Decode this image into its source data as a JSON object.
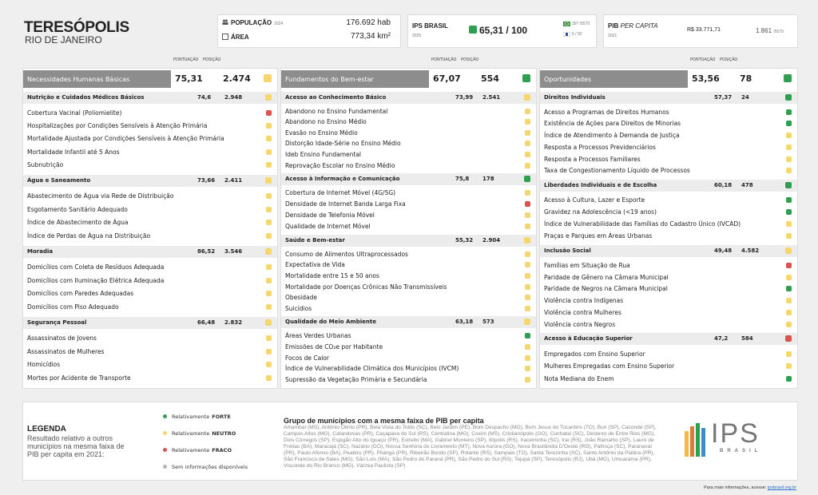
{
  "header": {
    "city": "TERESÓPOLIS",
    "state": "RIO DE JANEIRO"
  },
  "stats": {
    "population_label": "POPULAÇÃO",
    "population_year": "2024",
    "population": "176.692 hab",
    "area_label": "ÁREA",
    "area": "773,34 km²",
    "ips_label": "IPS BRASIL",
    "ips_year": "2025",
    "ips_color": "#2e9e4f",
    "ips_score": "65,31 / 100",
    "rank_national": "397",
    "rank_national_total": "/5570",
    "rank_state": "5",
    "rank_state_total": "/ 92",
    "pib_label": "PIB",
    "pib_label_suffix": "PER CAPITA",
    "pib_year": "2021",
    "pib_value": "R$ 33.771,71",
    "pib_rank": "1.861",
    "pib_rank_total": "/5570"
  },
  "column_headers": {
    "score": "PONTUAÇÃO",
    "rank": "POSIÇÃO"
  },
  "dimensions": [
    {
      "name": "Necessidades Humanas Básicas",
      "score": "75,31",
      "rank": "2.474",
      "color": "#f5d76e",
      "components": [
        {
          "name": "Nutrição e Cuidados Médicos Básicos",
          "score": "74,6",
          "rank": "2.948",
          "color": "#f5d76e",
          "indicators": [
            {
              "name": "Cobertura Vacinal (Poliomielite)",
              "color": "#d9534f"
            },
            {
              "name": "Hospitalizações por Condições Sensíveis à Atenção Primária",
              "color": "#f5d76e"
            },
            {
              "name": "Mortalidade Ajustada por Condições Sensíveis à Atenção Primária",
              "color": "#f5d76e"
            },
            {
              "name": "Mortalidade Infantil até 5 Anos",
              "color": "#f5d76e"
            },
            {
              "name": "Subnutrição",
              "color": "#f5d76e"
            }
          ]
        },
        {
          "name": "Água e Saneamento",
          "score": "73,66",
          "rank": "2.411",
          "color": "#f5d76e",
          "indicators": [
            {
              "name": "Abastecimento de Água via Rede de Distribuição",
              "color": "#f5d76e"
            },
            {
              "name": "Esgotamento Sanitário Adequado",
              "color": "#f5d76e"
            },
            {
              "name": "Índice de Abastecimento de Água",
              "color": "#f5d76e"
            },
            {
              "name": "Índice de Perdas de Água na Distribuição",
              "color": "#f5d76e"
            }
          ]
        },
        {
          "name": "Moradia",
          "score": "86,52",
          "rank": "3.546",
          "color": "#f5d76e",
          "indicators": [
            {
              "name": "Domicílios com Coleta de Resíduos Adequada",
              "color": "#f5d76e"
            },
            {
              "name": "Domicílios com Iluminação Elétrica Adequada",
              "color": "#f5d76e"
            },
            {
              "name": "Domicílios com Paredes Adequadas",
              "color": "#f5d76e"
            },
            {
              "name": "Domicílios com Piso Adequado",
              "color": "#f5d76e"
            }
          ]
        },
        {
          "name": "Segurança Pessoal",
          "score": "66,48",
          "rank": "2.832",
          "color": "#f5d76e",
          "indicators": [
            {
              "name": "Assassinatos de Jovens",
              "color": "#f5d76e"
            },
            {
              "name": "Assassinatos de Mulheres",
              "color": "#f5d76e"
            },
            {
              "name": "Homicídios",
              "color": "#f5d76e"
            },
            {
              "name": "Mortes por Acidente de Transporte",
              "color": "#f5d76e"
            }
          ]
        }
      ]
    },
    {
      "name": "Fundamentos do Bem-estar",
      "score": "67,07",
      "rank": "554",
      "color": "#2e9e4f",
      "components": [
        {
          "name": "Acesso ao Conhecimento Básico",
          "score": "73,99",
          "rank": "2.541",
          "color": "#f5d76e",
          "indicators": [
            {
              "name": "Abandono no Ensino Fundamental",
              "color": "#f5d76e"
            },
            {
              "name": "Abandono no Ensino Médio",
              "color": "#f5d76e"
            },
            {
              "name": "Evasão no Ensino Médio",
              "color": "#f5d76e"
            },
            {
              "name": "Distorção Idade-Série no Ensino Médio",
              "color": "#f5d76e"
            },
            {
              "name": "Ideb Ensino Fundamental",
              "color": "#f5d76e"
            },
            {
              "name": "Reprovação Escolar no Ensino Médio",
              "color": "#f5d76e"
            }
          ]
        },
        {
          "name": "Acesso à Informação e Comunicação",
          "score": "75,8",
          "rank": "178",
          "color": "#2e9e4f",
          "indicators": [
            {
              "name": "Cobertura de Internet Móvel (4G/5G)",
              "color": "#f5d76e"
            },
            {
              "name": "Densidade de Internet Banda Larga Fixa",
              "color": "#d9534f"
            },
            {
              "name": "Densidade de Telefonia Móvel",
              "color": "#f5d76e"
            },
            {
              "name": "Qualidade de Internet Móvel",
              "color": "#f5d76e"
            }
          ]
        },
        {
          "name": "Saúde e Bem-estar",
          "score": "55,32",
          "rank": "2.904",
          "color": "#f5d76e",
          "indicators": [
            {
              "name": "Consumo de Alimentos Ultraprocessados",
              "color": "#f5d76e"
            },
            {
              "name": "Expectativa de Vida",
              "color": "#f5d76e"
            },
            {
              "name": "Mortalidade entre 15 e 50 anos",
              "color": "#f5d76e"
            },
            {
              "name": "Mortalidade por Doenças Crônicas Não Transmissíveis",
              "color": "#f5d76e"
            },
            {
              "name": "Obesidade",
              "color": "#f5d76e"
            },
            {
              "name": "Suicídios",
              "color": "#f5d76e"
            }
          ]
        },
        {
          "name": "Qualidade do Meio Ambiente",
          "score": "63,18",
          "rank": "573",
          "color": "#f5d76e",
          "indicators": [
            {
              "name": "Áreas Verdes Urbanas",
              "color": "#2e9e4f"
            },
            {
              "name": "Emissões de CO₂e por Habitante",
              "color": "#f5d76e"
            },
            {
              "name": "Focos de Calor",
              "color": "#f5d76e"
            },
            {
              "name": "Índice de Vulnerabilidade Climática dos Municípios (IVCM)",
              "color": "#f5d76e"
            },
            {
              "name": "Supressão da Vegetação Primária e Secundária",
              "color": "#f5d76e"
            }
          ]
        }
      ]
    },
    {
      "name": "Oportunidades",
      "score": "53,56",
      "rank": "78",
      "color": "#2e9e4f",
      "components": [
        {
          "name": "Direitos Individuais",
          "score": "57,37",
          "rank": "24",
          "color": "#2e9e4f",
          "indicators": [
            {
              "name": "Acesso a Programas de Direitos Humanos",
              "color": "#2e9e4f"
            },
            {
              "name": "Existência de Ações para Direitos de Minorias",
              "color": "#2e9e4f"
            },
            {
              "name": "Índice de Atendimento à Demanda de Justiça",
              "color": "#f5d76e"
            },
            {
              "name": "Resposta a Processos Previdenciários",
              "color": "#f5d76e"
            },
            {
              "name": "Resposta a Processos Familiares",
              "color": "#f5d76e"
            },
            {
              "name": "Taxa de Congestionamento Líquido de Processos",
              "color": "#f5d76e"
            }
          ]
        },
        {
          "name": "Liberdades Individuais e de Escolha",
          "score": "60,18",
          "rank": "478",
          "color": "#2e9e4f",
          "indicators": [
            {
              "name": "Acesso à Cultura, Lazer e Esporte",
              "color": "#2e9e4f"
            },
            {
              "name": "Gravidez na Adolescência (<19 anos)",
              "color": "#2e9e4f"
            },
            {
              "name": "Índice de Vulnerabilidade das Famílias do Cadastro Único (IVCAD)",
              "color": "#f5d76e"
            },
            {
              "name": "Praças e Parques em Áreas Urbanas",
              "color": "#f5d76e"
            }
          ]
        },
        {
          "name": "Inclusão Social",
          "score": "49,48",
          "rank": "4.582",
          "color": "#f5d76e",
          "indicators": [
            {
              "name": "Famílias em Situação de Rua",
              "color": "#d9534f"
            },
            {
              "name": "Paridade de Gênero na Câmara Municipal",
              "color": "#f5d76e"
            },
            {
              "name": "Paridade de Negros na Câmara Municipal",
              "color": "#2e9e4f"
            },
            {
              "name": "Violência contra Indígenas",
              "color": "#f5d76e"
            },
            {
              "name": "Violência contra Mulheres",
              "color": "#f5d76e"
            },
            {
              "name": "Violência contra Negros",
              "color": "#f5d76e"
            }
          ]
        },
        {
          "name": "Acesso à Educação Superior",
          "score": "47,2",
          "rank": "584",
          "color": "#d9534f",
          "indicators": [
            {
              "name": "Empregados com Ensino Superior",
              "color": "#f5d76e"
            },
            {
              "name": "Mulheres Empregadas com Ensino Superior",
              "color": "#f5d76e"
            },
            {
              "name": "Nota Mediana do Enem",
              "color": "#2e9e4f"
            }
          ]
        }
      ]
    }
  ],
  "legend": {
    "title": "LEGENDA",
    "description": "Resultado relativo a outros municípios na mesma faixa de PIB per capita em 2021:",
    "items": [
      {
        "label": "Relativamente",
        "strong": "FORTE",
        "color": "#2e9e4f"
      },
      {
        "label": "Relativamente",
        "strong": "NEUTRO",
        "color": "#f5d76e"
      },
      {
        "label": "Relativamente",
        "strong": "FRACO",
        "color": "#d9534f"
      },
      {
        "label": "Sem informações disponíveis",
        "color": "#b5b5b5"
      }
    ]
  },
  "group": {
    "title": "Grupo de municípios com a mesma faixa de PIB per capita",
    "members": "Amambaí (MS), Antônio Olinto (PR), Bela Vista do Toldo (SC), Belo Jardim (PE), Bom Despacho (MG), Bom Jesus do Tocantins (TO), Buri (SP), Cacondé (SP), Campos Altos (MG), Catanduvas (PR), Caçapava do Sul (RS), Centralina (MG), Coxim (MS), Cristianópolis (GO), Cunhataí (SC), Desterro de Entre Rios (MG), Dois Córregos (SP), Espigão Alto do Iguaçu (PR), Estreito (MA), Gabriel Monteiro (SP), Ilópolis (RS), Iraceminha (SC), Irai (RS), João Ramalho (SP), Lauro de Freitas (BA), Maracajá (SC), Nazário (GO), Nossa Senhora do Livramento (MT), Nova Aurora (GO), Nova Brasilândia D'Oeste (RO), Palhoça (SC), Paranavaí (PR), Paulo Afonso (BA), Peabiru (PR), Pitanga (PR), Ribeirão Bonito (SP), Rolante (RS), Sampaio (TO), Santa Terezinha (SC), Santo Antônio da Platina (PR), São Francisco de Sales (MG), São Luís (MA), São Pedro do Paraná (PR), São Pedro do Sul (RS), Tejupá (SP), Teresópolis (RJ), Ubá (MG), Umuarama (PR), Visconde do Rio Branco (MG), Várzea Paulista (SP)"
  },
  "logo": {
    "text": "IPS",
    "sub": "BRASIL"
  },
  "footer": {
    "text": "Para mais informações, acesse:",
    "link": "ipsbrasil.org.br"
  }
}
